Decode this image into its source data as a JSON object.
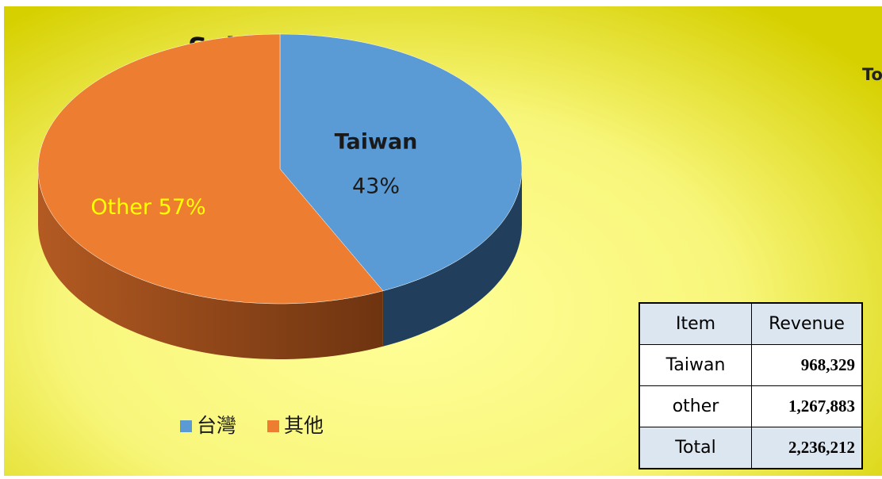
{
  "chart_data": {
    "type": "pie",
    "title": "Sales area",
    "categories": [
      "台灣",
      "其他"
    ],
    "values": [
      43,
      57
    ],
    "value_labels": [
      "43%",
      "57%"
    ],
    "label_names": [
      "Taiwan",
      "Other"
    ],
    "colors": [
      "#5b9bd5",
      "#ed7d31"
    ],
    "side_colors": [
      "#213f5c",
      "#a9521c"
    ],
    "legend": "bottom"
  },
  "clipped_text": "To",
  "table": {
    "headers": [
      "Item",
      "Revenue"
    ],
    "rows": [
      [
        "Taiwan",
        "968,329"
      ],
      [
        "other",
        "1,267,883"
      ],
      [
        "Total",
        "2,236,212"
      ]
    ]
  }
}
